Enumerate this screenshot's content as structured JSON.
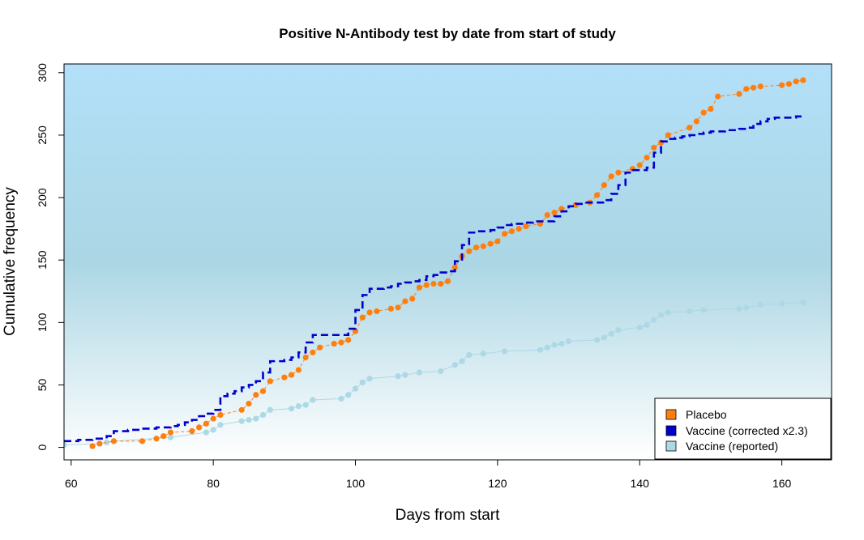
{
  "chart_data": {
    "type": "line",
    "title": "Positive N-Antibody test by date from start of study",
    "xlabel": "Days from start",
    "ylabel": "Cumulative frequency",
    "xlim": [
      59,
      167
    ],
    "ylim": [
      -10,
      307
    ],
    "xticks": [
      60,
      80,
      100,
      120,
      140,
      160
    ],
    "yticks": [
      0,
      50,
      100,
      150,
      200,
      250,
      300
    ],
    "xtick_labels": [
      "60",
      "80",
      "100",
      "120",
      "140",
      "160"
    ],
    "ytick_labels": [
      "0",
      "50",
      "100",
      "150",
      "200",
      "250",
      "300"
    ],
    "legend_position": "bottom-right",
    "series": [
      {
        "name": "Placebo",
        "color": "#ff7f0e",
        "style": "dashed-with-points",
        "x": [
          63,
          64,
          66,
          70,
          72,
          73,
          74,
          77,
          78,
          79,
          80,
          81,
          84,
          85,
          86,
          87,
          88,
          90,
          91,
          92,
          93,
          94,
          95,
          97,
          98,
          99,
          100,
          101,
          102,
          103,
          105,
          106,
          107,
          108,
          109,
          110,
          111,
          112,
          113,
          114,
          115,
          116,
          117,
          118,
          119,
          120,
          121,
          122,
          123,
          124,
          126,
          127,
          128,
          129,
          131,
          133,
          134,
          135,
          136,
          137,
          139,
          140,
          141,
          142,
          143,
          144,
          147,
          148,
          149,
          150,
          151,
          154,
          155,
          156,
          157,
          160,
          161,
          162,
          163
        ],
        "y": [
          1,
          3,
          5,
          5,
          7,
          9,
          12,
          13,
          16,
          19,
          23,
          26,
          30,
          35,
          42,
          45,
          53,
          56,
          58,
          62,
          72,
          76,
          80,
          83,
          84,
          86,
          93,
          104,
          108,
          109,
          111,
          112,
          117,
          119,
          128,
          130,
          131,
          131,
          133,
          144,
          153,
          157,
          160,
          161,
          163,
          165,
          171,
          173,
          175,
          177,
          179,
          186,
          188,
          191,
          194,
          196,
          202,
          210,
          217,
          220,
          223,
          226,
          232,
          240,
          244,
          250,
          256,
          261,
          268,
          271,
          281,
          283,
          287,
          288,
          289,
          290,
          291,
          293,
          294
        ]
      },
      {
        "name": "Vaccine (corrected x2.3)",
        "color": "#0000cd",
        "style": "dashed-step",
        "x": [
          59,
          60,
          61,
          62,
          63,
          64,
          65,
          66,
          67,
          68,
          69,
          70,
          71,
          72,
          73,
          74,
          75,
          76,
          77,
          78,
          79,
          80,
          81,
          82,
          83,
          84,
          85,
          86,
          87,
          88,
          89,
          90,
          91,
          92,
          93,
          94,
          95,
          96,
          97,
          98,
          99,
          100,
          101,
          102,
          103,
          104,
          105,
          106,
          107,
          108,
          109,
          110,
          111,
          112,
          113,
          114,
          115,
          116,
          117,
          118,
          119,
          120,
          121,
          122,
          123,
          124,
          125,
          126,
          127,
          128,
          129,
          130,
          131,
          132,
          133,
          134,
          135,
          136,
          137,
          138,
          139,
          140,
          141,
          142,
          143,
          144,
          145,
          146,
          147,
          148,
          149,
          150,
          151,
          152,
          153,
          154,
          155,
          156,
          157,
          158,
          159,
          160,
          161,
          162,
          163
        ],
        "y": [
          5,
          5,
          6,
          6,
          7,
          7,
          9,
          13,
          13,
          14,
          14,
          15,
          15,
          16,
          16,
          17,
          18,
          20,
          22,
          25,
          27,
          30,
          41,
          43,
          45,
          48,
          50,
          53,
          60,
          69,
          69,
          70,
          72,
          76,
          84,
          90,
          90,
          90,
          90,
          90,
          95,
          110,
          122,
          127,
          127,
          128,
          129,
          131,
          132,
          133,
          134,
          137,
          138,
          140,
          141,
          149,
          162,
          172,
          173,
          173,
          174,
          176,
          178,
          179,
          179,
          180,
          181,
          181,
          181,
          185,
          189,
          193,
          195,
          196,
          196,
          196,
          198,
          203,
          210,
          220,
          222,
          222,
          224,
          236,
          245,
          247,
          248,
          249,
          250,
          251,
          252,
          253,
          253,
          254,
          254,
          255,
          256,
          259,
          261,
          263,
          264,
          264,
          264,
          265,
          266
        ]
      },
      {
        "name": "Vaccine (reported)",
        "color": "#add8e6",
        "style": "line-with-points",
        "x": [
          59,
          64,
          65,
          66,
          74,
          79,
          80,
          81,
          84,
          85,
          86,
          87,
          88,
          91,
          92,
          93,
          94,
          98,
          99,
          100,
          101,
          102,
          106,
          107,
          109,
          112,
          114,
          115,
          116,
          118,
          121,
          126,
          127,
          128,
          129,
          130,
          134,
          135,
          136,
          137,
          140,
          141,
          142,
          143,
          144,
          147,
          149,
          154,
          155,
          157,
          160,
          163
        ],
        "y": [
          2,
          3,
          4,
          5,
          8,
          12,
          14,
          18,
          21,
          22,
          23,
          26,
          30,
          31,
          33,
          34,
          38,
          39,
          42,
          47,
          52,
          55,
          57,
          58,
          60,
          61,
          66,
          69,
          74,
          75,
          77,
          78,
          80,
          82,
          83,
          85,
          86,
          88,
          91,
          94,
          96,
          98,
          102,
          106,
          108,
          109,
          110,
          111,
          112,
          114,
          115,
          116
        ]
      }
    ]
  },
  "style": {
    "bg_top": "#b3e0f9",
    "bg_mid": "#abd6e4",
    "bg_bottom": "#ffffff"
  }
}
